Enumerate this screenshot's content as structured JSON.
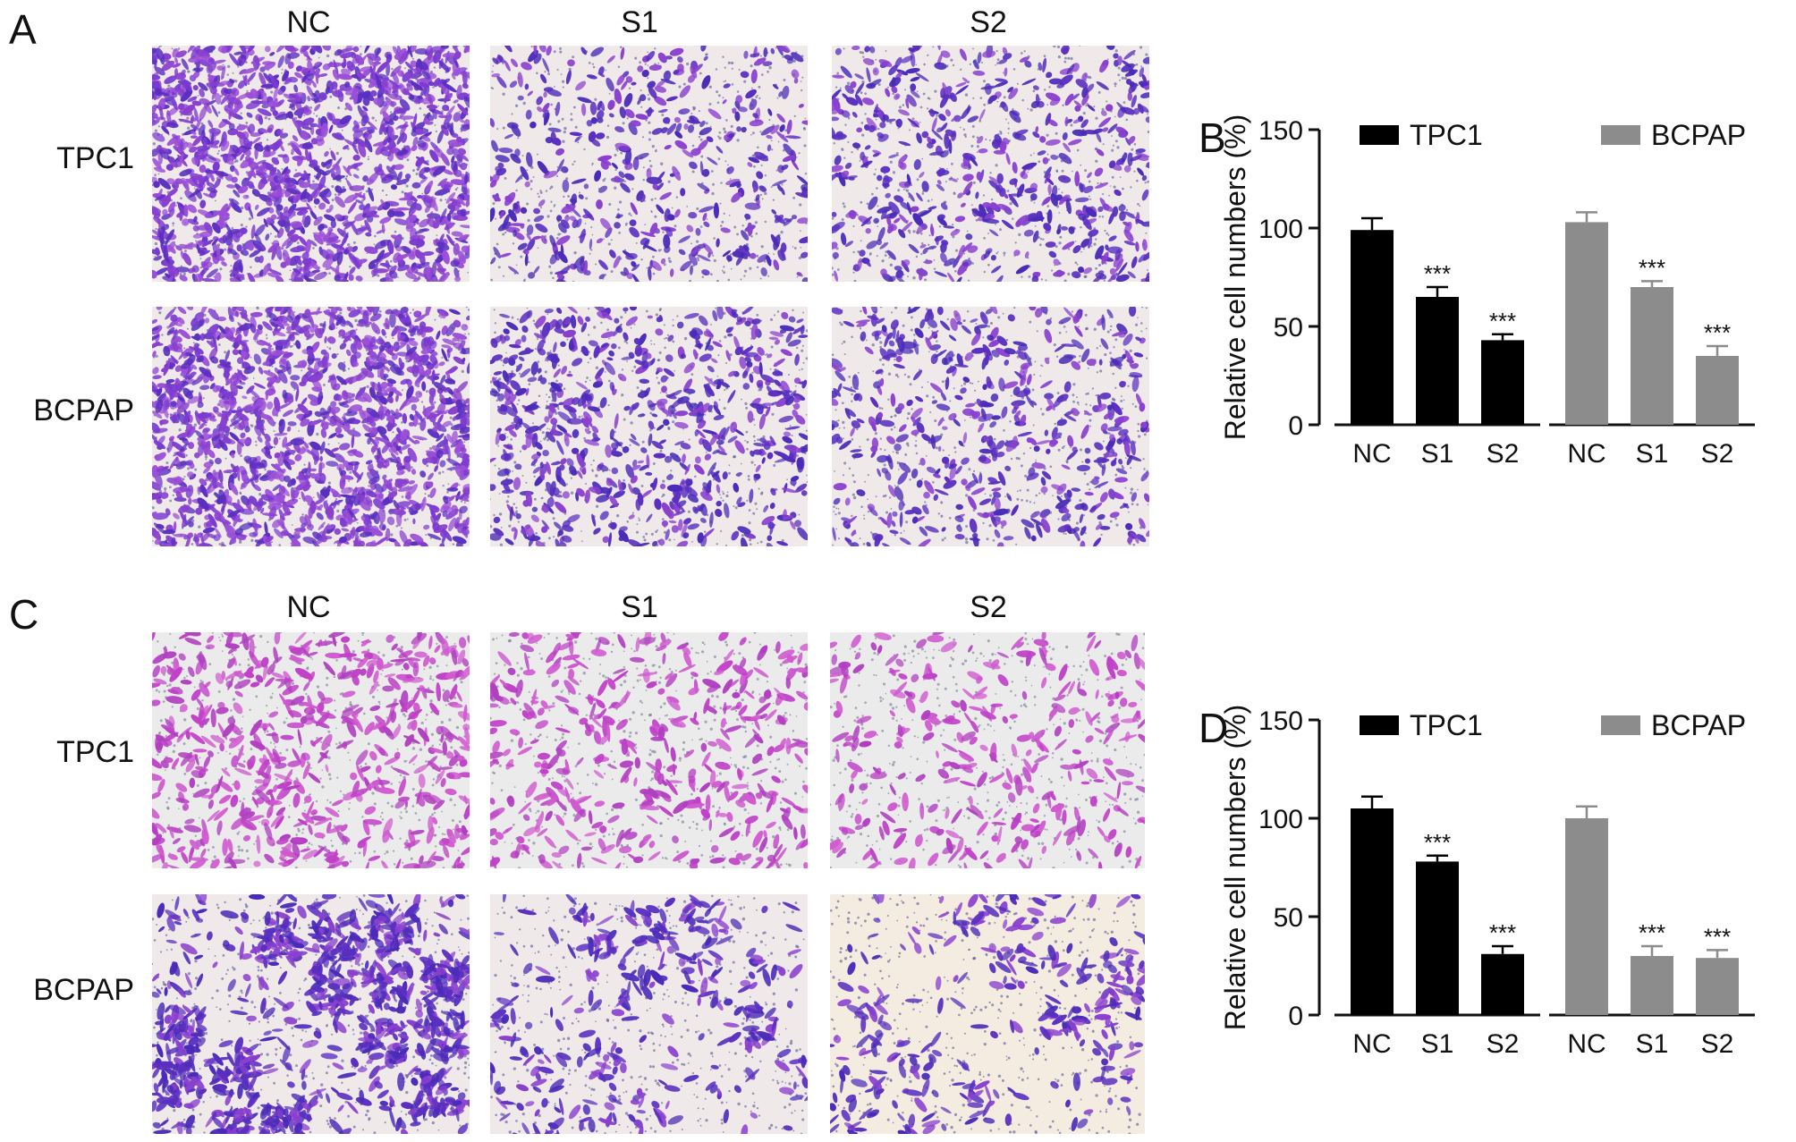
{
  "panels": {
    "A": {
      "letter": "A",
      "columns": [
        "NC",
        "S1",
        "S2"
      ],
      "rows": [
        "TPC1",
        "BCPAP"
      ]
    },
    "C": {
      "letter": "C",
      "columns": [
        "NC",
        "S1",
        "S2"
      ],
      "rows": [
        "TPC1",
        "BCPAP"
      ]
    }
  },
  "colors": {
    "stain_dark": "#5a2fc0",
    "stain_mid": "#8a3fcf",
    "stain_magenta": "#c040c8",
    "background_light": "#efe9ea",
    "tpc1_bar": "#000000",
    "bcpap_bar": "#8c8c8c"
  },
  "chart_data": [
    {
      "panel": "B",
      "type": "bar",
      "ylabel": "Relative cell numbers (%)",
      "ylim": [
        0,
        150
      ],
      "yticks": [
        0,
        50,
        100,
        150
      ],
      "significance": "***",
      "legend": [
        "TPC1",
        "BCPAP"
      ],
      "groups": [
        {
          "name": "TPC1",
          "color": "#000000",
          "categories": [
            "NC",
            "S1",
            "S2"
          ],
          "values": [
            99,
            65,
            43
          ],
          "errors": [
            6,
            5,
            3
          ],
          "marks": [
            "",
            "***",
            "***"
          ]
        },
        {
          "name": "BCPAP",
          "color": "#8c8c8c",
          "categories": [
            "NC",
            "S1",
            "S2"
          ],
          "values": [
            103,
            70,
            35
          ],
          "errors": [
            5,
            3,
            5
          ],
          "marks": [
            "",
            "***",
            "***"
          ]
        }
      ]
    },
    {
      "panel": "D",
      "type": "bar",
      "ylabel": "Relative cell numbers (%)",
      "ylim": [
        0,
        150
      ],
      "yticks": [
        0,
        50,
        100,
        150
      ],
      "significance": "***",
      "legend": [
        "TPC1",
        "BCPAP"
      ],
      "groups": [
        {
          "name": "TPC1",
          "color": "#000000",
          "categories": [
            "NC",
            "S1",
            "S2"
          ],
          "values": [
            105,
            78,
            31
          ],
          "errors": [
            6,
            3,
            4
          ],
          "marks": [
            "",
            "***",
            "***"
          ]
        },
        {
          "name": "BCPAP",
          "color": "#8c8c8c",
          "categories": [
            "NC",
            "S1",
            "S2"
          ],
          "values": [
            100,
            30,
            29
          ],
          "errors": [
            6,
            5,
            4
          ],
          "marks": [
            "",
            "***",
            "***"
          ]
        }
      ]
    }
  ]
}
